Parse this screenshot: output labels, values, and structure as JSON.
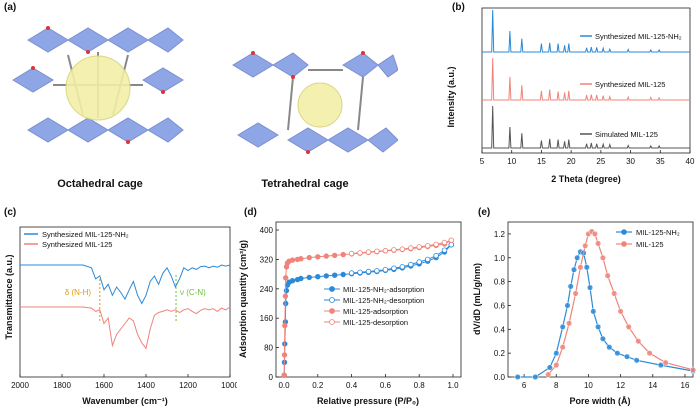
{
  "panels": {
    "a": {
      "label": "(a)",
      "captions": [
        "Octahedral cage",
        "Tetrahedral cage"
      ]
    },
    "b": {
      "label": "(b)",
      "xlabel": "2 Theta (degree)",
      "ylabel": "Intensity (a.u.)",
      "xticks": [
        "5",
        "10",
        "15",
        "20",
        "25",
        "30",
        "35",
        "40"
      ],
      "legend": [
        "Synthesized MIL-125-NH₂",
        "Synthesized MIL-125",
        "Simulated MIL-125"
      ],
      "colors": [
        "#2b8ad8",
        "#f0847a",
        "#555555"
      ]
    },
    "c": {
      "label": "(c)",
      "xlabel": "Wavenumber (cm⁻¹)",
      "ylabel": "Transmittance (a.u.)",
      "xticks": [
        "2000",
        "1800",
        "1600",
        "1400",
        "1200",
        "1000"
      ],
      "legend": [
        "Synthesized MIL-125-NH₂",
        "Synthesized MIL-125"
      ],
      "annotations": [
        "δ (N-H)",
        "ν (C-N)"
      ],
      "colors": [
        "#2b8ad8",
        "#f0847a"
      ]
    },
    "d": {
      "label": "(d)",
      "xlabel": "Relative pressure (P/P₀)",
      "ylabel": "Adsorption quantity (cm³/g)",
      "xticks": [
        "0.0",
        "0.2",
        "0.4",
        "0.6",
        "0.8",
        "1.0"
      ],
      "yticks": [
        "0",
        "80",
        "160",
        "240",
        "320",
        "400"
      ],
      "legend": [
        "MIL-125-NH₂-adsorption",
        "MIL-125-NH₂-desorption",
        "MIL-125-adsorption",
        "MIL-125-desorption"
      ],
      "colors": [
        "#2b8ad8",
        "#f0847a"
      ]
    },
    "e": {
      "label": "(e)",
      "xlabel": "Pore width (Å)",
      "ylabel": "dV/dD (mL/g/nm)",
      "xticks": [
        "6",
        "8",
        "10",
        "12",
        "14",
        "16"
      ],
      "yticks": [
        "0.0",
        "0.2",
        "0.4",
        "0.6",
        "0.8",
        "1.0",
        "1.2"
      ],
      "legend": [
        "MIL-125-NH₂",
        "MIL-125"
      ],
      "colors": [
        "#2b8ad8",
        "#f0847a"
      ]
    }
  },
  "chart_data": [
    {
      "type": "line",
      "panel": "b",
      "title": "",
      "xlabel": "2 Theta (degree)",
      "ylabel": "Intensity (a.u.)",
      "xlim": [
        5,
        40
      ],
      "peaks": [
        6.8,
        9.7,
        11.7,
        15.0,
        16.4,
        17.8,
        18.9,
        19.6,
        22.6,
        23.4,
        24.3,
        25.4,
        26.5,
        29.6,
        33.4,
        34.8
      ],
      "series": [
        {
          "name": "Synthesized MIL-125-NH₂",
          "heights": [
            1.0,
            0.5,
            0.32,
            0.2,
            0.22,
            0.2,
            0.16,
            0.2,
            0.1,
            0.12,
            0.11,
            0.09,
            0.07,
            0.06,
            0.05,
            0.05
          ]
        },
        {
          "name": "Synthesized MIL-125",
          "heights": [
            1.0,
            0.55,
            0.35,
            0.22,
            0.25,
            0.2,
            0.18,
            0.22,
            0.12,
            0.13,
            0.12,
            0.1,
            0.08,
            0.07,
            0.06,
            0.05
          ]
        },
        {
          "name": "Simulated MIL-125",
          "heights": [
            1.0,
            0.5,
            0.35,
            0.18,
            0.22,
            0.2,
            0.16,
            0.2,
            0.1,
            0.12,
            0.1,
            0.09,
            0.08,
            0.06,
            0.05,
            0.05
          ]
        }
      ]
    },
    {
      "type": "line",
      "panel": "c",
      "xlabel": "Wavenumber (cm⁻¹)",
      "ylabel": "Transmittance (a.u.)",
      "xlim": [
        2000,
        1000
      ],
      "series": [
        {
          "name": "Synthesized MIL-125-NH₂",
          "x": [
            2000,
            1700,
            1660,
            1640,
            1620,
            1600,
            1580,
            1560,
            1540,
            1520,
            1500,
            1480,
            1460,
            1440,
            1420,
            1400,
            1380,
            1360,
            1340,
            1320,
            1300,
            1280,
            1260,
            1240,
            1220,
            1200,
            1180,
            1160,
            1140,
            1120,
            1100,
            1080,
            1060,
            1040,
            1020,
            1000
          ],
          "y": [
            0.0,
            0.0,
            -0.05,
            -0.25,
            -0.2,
            -0.45,
            -0.35,
            -0.55,
            -0.4,
            -0.5,
            -0.62,
            -0.45,
            -0.3,
            -0.55,
            -0.7,
            -0.55,
            -0.3,
            -0.2,
            -0.35,
            -0.15,
            -0.05,
            -0.2,
            -0.4,
            -0.25,
            -0.05,
            -0.1,
            -0.05,
            -0.08,
            -0.03,
            -0.02,
            -0.05,
            -0.02,
            -0.04,
            0.0,
            -0.02,
            0.0
          ]
        },
        {
          "name": "Synthesized MIL-125",
          "x": [
            2000,
            1700,
            1660,
            1640,
            1620,
            1600,
            1580,
            1560,
            1540,
            1520,
            1500,
            1480,
            1460,
            1440,
            1420,
            1400,
            1380,
            1360,
            1340,
            1320,
            1300,
            1280,
            1260,
            1240,
            1220,
            1200,
            1180,
            1160,
            1140,
            1120,
            1100,
            1080,
            1060,
            1040,
            1020,
            1000
          ],
          "y": [
            0.0,
            0.0,
            -0.02,
            -0.08,
            -0.05,
            -0.3,
            -0.2,
            -0.7,
            -0.5,
            -0.4,
            -0.3,
            -0.2,
            -0.25,
            -0.5,
            -0.65,
            -0.75,
            -0.4,
            -0.15,
            -0.1,
            -0.08,
            -0.05,
            -0.08,
            -0.05,
            -0.1,
            -0.05,
            -0.03,
            -0.08,
            -0.12,
            -0.06,
            -0.03,
            -0.05,
            -0.03,
            -0.08,
            -0.02,
            -0.05,
            0.0
          ]
        }
      ],
      "annotations": [
        {
          "text": "δ (N-H)",
          "x": 1620
        },
        {
          "text": "ν (C-N)",
          "x": 1257
        }
      ]
    },
    {
      "type": "scatter",
      "panel": "d",
      "xlabel": "Relative pressure (P/P₀)",
      "ylabel": "Adsorption quantity (cm³/g)",
      "xlim": [
        0,
        1.0
      ],
      "ylim": [
        0,
        400
      ],
      "series": [
        {
          "name": "MIL-125-NH₂-adsorption",
          "x": [
            0.001,
            0.003,
            0.005,
            0.008,
            0.01,
            0.015,
            0.02,
            0.03,
            0.05,
            0.08,
            0.1,
            0.15,
            0.2,
            0.25,
            0.3,
            0.35,
            0.4,
            0.45,
            0.5,
            0.55,
            0.6,
            0.65,
            0.7,
            0.75,
            0.8,
            0.85,
            0.9,
            0.95,
            0.99
          ],
          "y": [
            5,
            40,
            90,
            150,
            200,
            235,
            250,
            258,
            262,
            265,
            268,
            271,
            273,
            275,
            277,
            279,
            281,
            283,
            285,
            287,
            290,
            293,
            297,
            302,
            308,
            315,
            325,
            340,
            360
          ]
        },
        {
          "name": "MIL-125-NH₂-desorption",
          "x": [
            0.99,
            0.95,
            0.9,
            0.85,
            0.8,
            0.75,
            0.7,
            0.65,
            0.6,
            0.55,
            0.5,
            0.45,
            0.4
          ],
          "y": [
            360,
            345,
            330,
            320,
            313,
            306,
            300,
            296,
            292,
            289,
            287,
            285,
            283
          ]
        },
        {
          "name": "MIL-125-adsorption",
          "x": [
            0.001,
            0.003,
            0.005,
            0.008,
            0.01,
            0.015,
            0.02,
            0.03,
            0.05,
            0.08,
            0.1,
            0.15,
            0.2,
            0.25,
            0.3,
            0.35,
            0.4,
            0.45,
            0.5,
            0.55,
            0.6,
            0.65,
            0.7,
            0.75,
            0.8,
            0.85,
            0.9,
            0.95,
            0.99
          ],
          "y": [
            5,
            60,
            140,
            220,
            270,
            300,
            310,
            315,
            318,
            320,
            322,
            325,
            327,
            329,
            331,
            333,
            335,
            337,
            339,
            341,
            343,
            345,
            347,
            349,
            352,
            355,
            358,
            362,
            372
          ]
        },
        {
          "name": "MIL-125-desorption",
          "x": [
            0.99,
            0.95,
            0.9,
            0.85,
            0.8,
            0.75,
            0.7,
            0.65,
            0.6,
            0.55,
            0.5,
            0.45,
            0.4
          ],
          "y": [
            372,
            366,
            361,
            357,
            354,
            351,
            348,
            346,
            344,
            342,
            340,
            338,
            336
          ]
        }
      ]
    },
    {
      "type": "line",
      "panel": "e",
      "xlabel": "Pore width (Å)",
      "ylabel": "dV/dD (mL/g/nm)",
      "xlim": [
        5,
        16.5
      ],
      "ylim": [
        0,
        1.3
      ],
      "series": [
        {
          "name": "MIL-125-NH₂",
          "x": [
            5.6,
            6.7,
            7.6,
            8.0,
            8.4,
            8.7,
            8.9,
            9.1,
            9.3,
            9.5,
            9.7,
            9.9,
            10.1,
            10.3,
            10.6,
            10.9,
            11.3,
            11.8,
            12.4,
            13.0,
            14.5,
            16.5
          ],
          "y": [
            0.0,
            0.0,
            0.08,
            0.2,
            0.42,
            0.6,
            0.76,
            0.9,
            1.0,
            1.05,
            1.04,
            0.92,
            0.75,
            0.55,
            0.42,
            0.32,
            0.25,
            0.2,
            0.17,
            0.14,
            0.1,
            0.05
          ]
        },
        {
          "name": "MIL-125",
          "x": [
            7.5,
            8.0,
            8.4,
            8.8,
            9.2,
            9.5,
            9.8,
            10.0,
            10.2,
            10.4,
            10.6,
            10.9,
            11.2,
            11.6,
            12.0,
            12.5,
            13.1,
            13.8,
            14.8,
            16.5
          ],
          "y": [
            0.02,
            0.1,
            0.25,
            0.45,
            0.7,
            0.92,
            1.1,
            1.2,
            1.22,
            1.2,
            1.12,
            1.0,
            0.85,
            0.7,
            0.55,
            0.42,
            0.3,
            0.2,
            0.12,
            0.06
          ]
        }
      ]
    }
  ]
}
